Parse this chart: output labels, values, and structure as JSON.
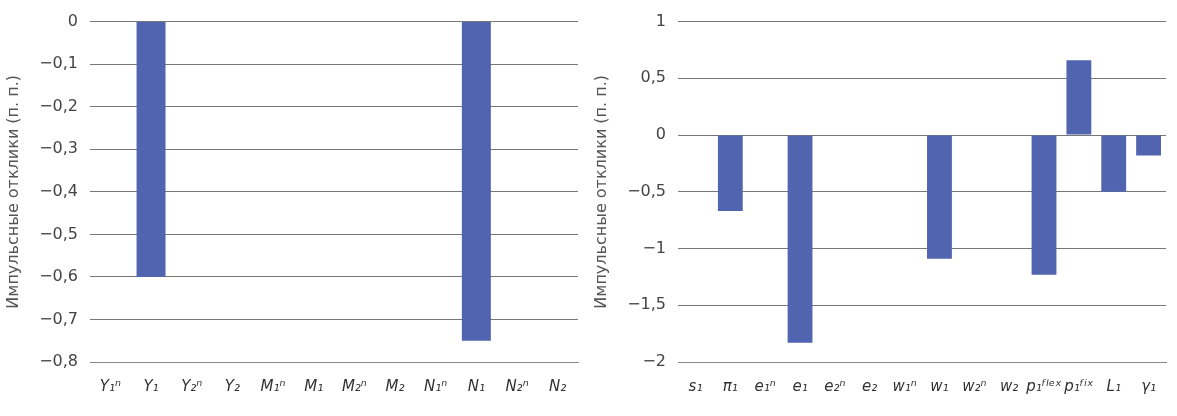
{
  "chart_data": [
    {
      "type": "bar",
      "ylabel": "Импульсные отклики (п. п.)",
      "categories": [
        "Y₁ⁿ",
        "Y₁",
        "Y₂ⁿ",
        "Y₂",
        "M₁ⁿ",
        "M₁",
        "M₂ⁿ",
        "M₂",
        "N₁ⁿ",
        "N₁",
        "N₂ⁿ",
        "N₂"
      ],
      "values": [
        0,
        -0.6,
        0,
        0,
        0,
        0,
        0,
        0,
        0,
        -0.75,
        0,
        0
      ],
      "color": "#5064b0",
      "ylim": [
        -0.8,
        0
      ],
      "yticks": [
        {
          "value": 0,
          "label": "0"
        },
        {
          "value": -0.1,
          "label": "−0,1"
        },
        {
          "value": -0.2,
          "label": "−0,2"
        },
        {
          "value": -0.3,
          "label": "−0,3"
        },
        {
          "value": -0.4,
          "label": "−0,4"
        },
        {
          "value": -0.5,
          "label": "−0,5"
        },
        {
          "value": -0.6,
          "label": "−0,6"
        },
        {
          "value": -0.7,
          "label": "−0,7"
        },
        {
          "value": -0.8,
          "label": "−0,8"
        }
      ],
      "grid": "y"
    },
    {
      "type": "bar",
      "ylabel": "Импульсные отклики (п. п.)",
      "categories": [
        "s₁",
        "π₁",
        "e₁ⁿ",
        "e₁",
        "e₂ⁿ",
        "e₂",
        "w₁ⁿ",
        "w₁",
        "w₂ⁿ",
        "w₂",
        "p₁ᶠˡᵉˣ",
        "p₁ᶠⁱˣ",
        "L₁",
        "γ₁"
      ],
      "values": [
        0,
        -0.67,
        0,
        -1.83,
        0,
        0,
        0,
        -1.09,
        0,
        0,
        -1.23,
        0.66,
        -0.5,
        -0.18
      ],
      "color": "#5064b0",
      "ylim": [
        -2,
        1
      ],
      "yticks": [
        {
          "value": 1,
          "label": "1"
        },
        {
          "value": 0.5,
          "label": "0,5"
        },
        {
          "value": 0,
          "label": "0"
        },
        {
          "value": -0.5,
          "label": "−0,5"
        },
        {
          "value": -1,
          "label": "−1"
        },
        {
          "value": -1.5,
          "label": "−1,5"
        },
        {
          "value": -2,
          "label": "−2"
        }
      ],
      "grid": "y"
    }
  ]
}
